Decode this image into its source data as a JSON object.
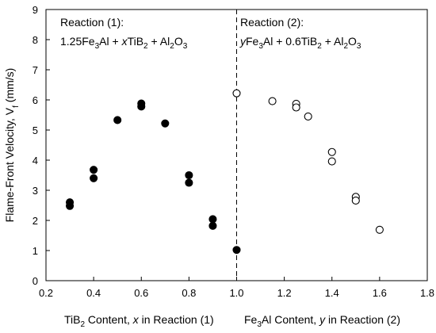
{
  "chart_data": {
    "type": "scatter",
    "ylabel_pre": "Flame-Front Velocity, V",
    "ylabel_sub": "f",
    "ylabel_post": " (mm/s)",
    "xlim": [
      0.2,
      1.8
    ],
    "ylim": [
      0,
      9
    ],
    "x_ticks": [
      "0.2",
      "0.4",
      "0.6",
      "0.8",
      "1.0",
      "1.2",
      "1.4",
      "1.6",
      "1.8"
    ],
    "y_ticks": [
      "0",
      "1",
      "2",
      "3",
      "4",
      "5",
      "6",
      "7",
      "8",
      "9"
    ],
    "divider_x": 1.0,
    "divider_style": "dashed",
    "series": [
      {
        "marker": "filled-circle",
        "x": [
          0.3,
          0.3,
          0.4,
          0.4,
          0.5,
          0.6,
          0.6,
          0.7,
          0.8,
          0.8,
          0.9,
          0.9,
          1.0
        ],
        "y": [
          2.6,
          2.48,
          3.68,
          3.4,
          5.33,
          5.88,
          5.78,
          5.22,
          3.5,
          3.25,
          2.04,
          1.82,
          1.02
        ]
      },
      {
        "marker": "open-circle",
        "x": [
          1.0,
          1.15,
          1.25,
          1.25,
          1.3,
          1.4,
          1.4,
          1.5,
          1.5,
          1.6
        ],
        "y": [
          6.22,
          5.96,
          5.87,
          5.75,
          5.45,
          4.27,
          3.96,
          2.78,
          2.66,
          1.69
        ]
      }
    ],
    "annotations": {
      "left_title": "Reaction (1):",
      "left_formula": [
        "1.25Fe",
        "3",
        "Al + ",
        "x",
        "TiB",
        "2",
        " + Al",
        "2",
        "O",
        "3"
      ],
      "right_title": "Reaction (2):",
      "right_formula": [
        "y",
        "Fe",
        "3",
        "Al + 0.6TiB",
        "2",
        " + Al",
        "2",
        "O",
        "3"
      ]
    },
    "bottom_labels": {
      "left": [
        "TiB",
        "2",
        " Content, ",
        "x",
        " in Reaction (1)"
      ],
      "right": [
        "Fe",
        "3",
        "Al Content, ",
        "y",
        " in Reaction (2)"
      ]
    },
    "colors": {
      "marker": "#000000",
      "open_fill": "#ffffff"
    }
  }
}
